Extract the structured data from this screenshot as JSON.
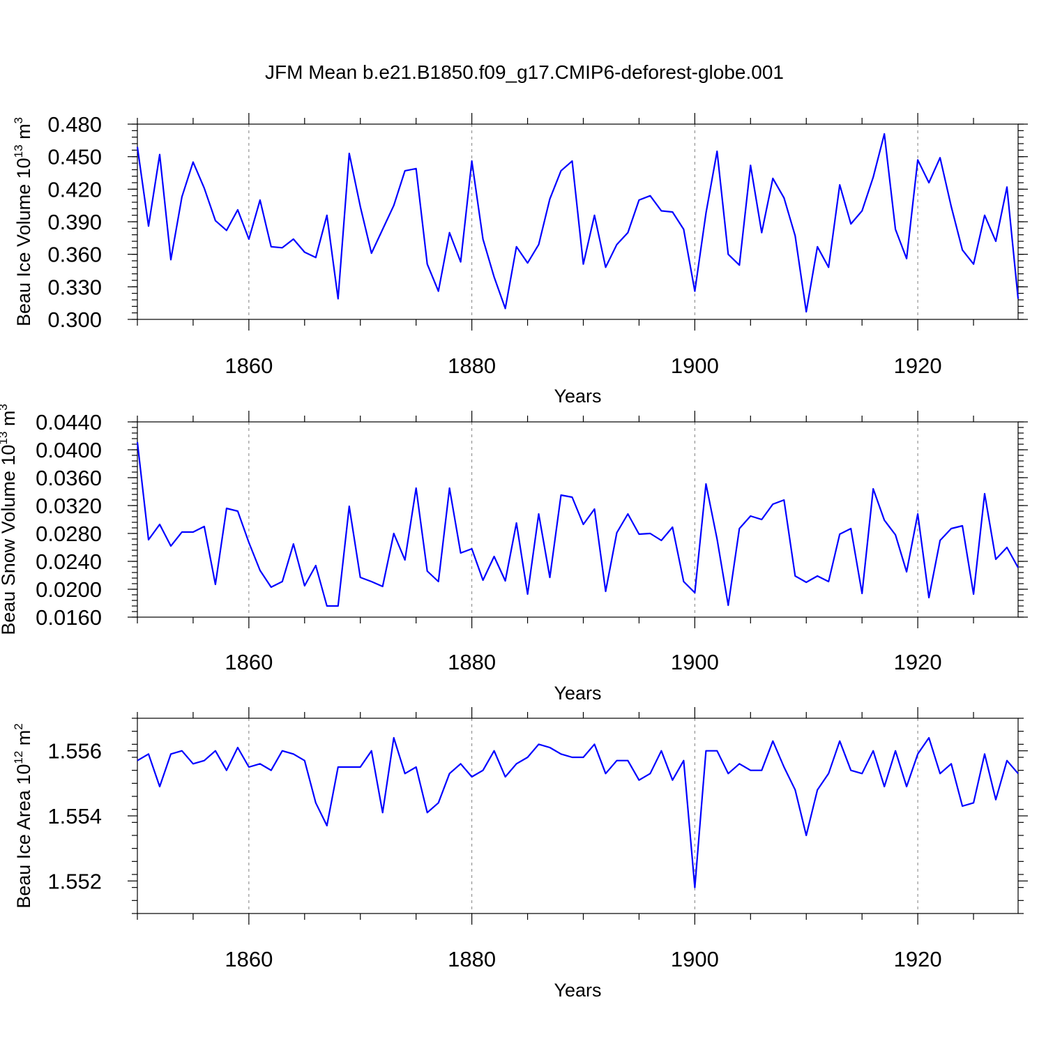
{
  "title": "JFM Mean b.e21.B1850.f09_g17.CMIP6-deforest-globe.001",
  "colors": {
    "line": "#0000ff",
    "axes": "#000000",
    "grid": "#7f7f7f"
  },
  "chart_data": [
    {
      "type": "line",
      "ylabel": "Beau Ice Volume 10",
      "ylabel_exp": "13",
      "ylabel_unit": "m",
      "ylabel_unit_exp": "3",
      "xlabel": "Years",
      "xlim": [
        1850,
        1929
      ],
      "ylim": [
        0.3,
        0.48
      ],
      "yticks": [
        0.3,
        0.33,
        0.36,
        0.39,
        0.42,
        0.45,
        0.48
      ],
      "ytick_labels": [
        "0.300",
        "0.330",
        "0.360",
        "0.390",
        "0.420",
        "0.450",
        "0.480"
      ],
      "xticks": [
        1860,
        1880,
        1900,
        1920
      ],
      "xtick_labels": [
        "1860",
        "1880",
        "1900",
        "1920"
      ],
      "grid_x": true,
      "series": [
        {
          "name": "Beau Ice Volume",
          "x_start": 1850,
          "values": [
            0.459,
            0.386,
            0.452,
            0.355,
            0.413,
            0.445,
            0.421,
            0.391,
            0.382,
            0.401,
            0.374,
            0.41,
            0.367,
            0.366,
            0.374,
            0.362,
            0.357,
            0.396,
            0.319,
            0.453,
            0.404,
            0.361,
            0.383,
            0.405,
            0.437,
            0.439,
            0.351,
            0.326,
            0.38,
            0.353,
            0.446,
            0.374,
            0.339,
            0.31,
            0.367,
            0.352,
            0.369,
            0.411,
            0.437,
            0.446,
            0.351,
            0.396,
            0.348,
            0.369,
            0.38,
            0.41,
            0.414,
            0.4,
            0.399,
            0.383,
            0.326,
            0.398,
            0.455,
            0.36,
            0.35,
            0.442,
            0.38,
            0.43,
            0.412,
            0.377,
            0.307,
            0.367,
            0.348,
            0.424,
            0.388,
            0.4,
            0.431,
            0.471,
            0.383,
            0.356,
            0.447,
            0.426,
            0.449,
            0.404,
            0.364,
            0.351,
            0.396,
            0.372,
            0.422,
            0.319
          ]
        }
      ]
    },
    {
      "type": "line",
      "ylabel": "Beau Snow Volume 10",
      "ylabel_exp": "13",
      "ylabel_unit": "m",
      "ylabel_unit_exp": "3",
      "xlabel": "Years",
      "xlim": [
        1850,
        1929
      ],
      "ylim": [
        0.016,
        0.044
      ],
      "yticks": [
        0.016,
        0.02,
        0.024,
        0.028,
        0.032,
        0.036,
        0.04,
        0.044
      ],
      "ytick_labels": [
        "0.0160",
        "0.0200",
        "0.0240",
        "0.0280",
        "0.0320",
        "0.0360",
        "0.0400",
        "0.0440"
      ],
      "xticks": [
        1860,
        1880,
        1900,
        1920
      ],
      "xtick_labels": [
        "1860",
        "1880",
        "1900",
        "1920"
      ],
      "grid_x": true,
      "series": [
        {
          "name": "Beau Snow Volume",
          "x_start": 1850,
          "values": [
            0.0411,
            0.0271,
            0.0293,
            0.0262,
            0.0282,
            0.0282,
            0.029,
            0.0207,
            0.0316,
            0.0312,
            0.0267,
            0.0227,
            0.0203,
            0.0211,
            0.0265,
            0.0205,
            0.0234,
            0.0176,
            0.0176,
            0.0319,
            0.0217,
            0.0211,
            0.0204,
            0.028,
            0.0242,
            0.0345,
            0.0226,
            0.0211,
            0.0345,
            0.0252,
            0.0258,
            0.0213,
            0.0247,
            0.0212,
            0.0295,
            0.0193,
            0.0308,
            0.0217,
            0.0335,
            0.0332,
            0.0293,
            0.0315,
            0.0197,
            0.0281,
            0.0308,
            0.0279,
            0.028,
            0.027,
            0.0289,
            0.0211,
            0.0195,
            0.0351,
            0.0272,
            0.0177,
            0.0287,
            0.0305,
            0.03,
            0.0322,
            0.0328,
            0.0219,
            0.021,
            0.0219,
            0.0211,
            0.0279,
            0.0287,
            0.0194,
            0.0344,
            0.0299,
            0.0278,
            0.0225,
            0.0308,
            0.0188,
            0.027,
            0.0287,
            0.0291,
            0.0193,
            0.0337,
            0.0243,
            0.026,
            0.0231
          ]
        }
      ]
    },
    {
      "type": "line",
      "ylabel": "Beau Ice Area 10",
      "ylabel_exp": "12",
      "ylabel_unit": "m",
      "ylabel_unit_exp": "2",
      "xlabel": "Years",
      "xlim": [
        1850,
        1929
      ],
      "ylim": [
        1.551,
        1.557
      ],
      "yticks": [
        1.552,
        1.554,
        1.556
      ],
      "ytick_labels": [
        "1.552",
        "1.554",
        "1.556"
      ],
      "xticks": [
        1860,
        1880,
        1900,
        1920
      ],
      "xtick_labels": [
        "1860",
        "1880",
        "1900",
        "1920"
      ],
      "grid_x": true,
      "series": [
        {
          "name": "Beau Ice Area",
          "x_start": 1850,
          "values": [
            1.5557,
            1.5559,
            1.5549,
            1.5559,
            1.556,
            1.5556,
            1.5557,
            1.556,
            1.5554,
            1.5561,
            1.5555,
            1.5556,
            1.5554,
            1.556,
            1.5559,
            1.5557,
            1.5544,
            1.5537,
            1.5555,
            1.5555,
            1.5555,
            1.556,
            1.5541,
            1.5564,
            1.5553,
            1.5555,
            1.5541,
            1.5544,
            1.5553,
            1.5556,
            1.5552,
            1.5554,
            1.556,
            1.5552,
            1.5556,
            1.5558,
            1.5562,
            1.5561,
            1.5559,
            1.5558,
            1.5558,
            1.5562,
            1.5553,
            1.5557,
            1.5557,
            1.5551,
            1.5553,
            1.556,
            1.5551,
            1.5557,
            1.5518,
            1.556,
            1.556,
            1.5553,
            1.5556,
            1.5554,
            1.5554,
            1.5563,
            1.5555,
            1.5548,
            1.5534,
            1.5548,
            1.5553,
            1.5563,
            1.5554,
            1.5553,
            1.556,
            1.5549,
            1.556,
            1.5549,
            1.5559,
            1.5564,
            1.5553,
            1.5556,
            1.5543,
            1.5544,
            1.5559,
            1.5545,
            1.5557,
            1.5553
          ]
        }
      ]
    }
  ]
}
